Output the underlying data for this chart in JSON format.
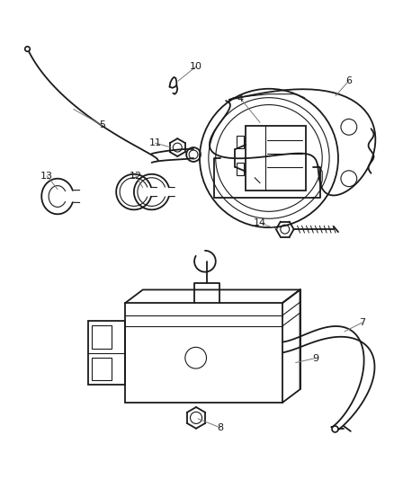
{
  "bg_color": "#ffffff",
  "line_color": "#1a1a1a",
  "label_color": "#555555",
  "fig_width": 4.38,
  "fig_height": 5.33
}
